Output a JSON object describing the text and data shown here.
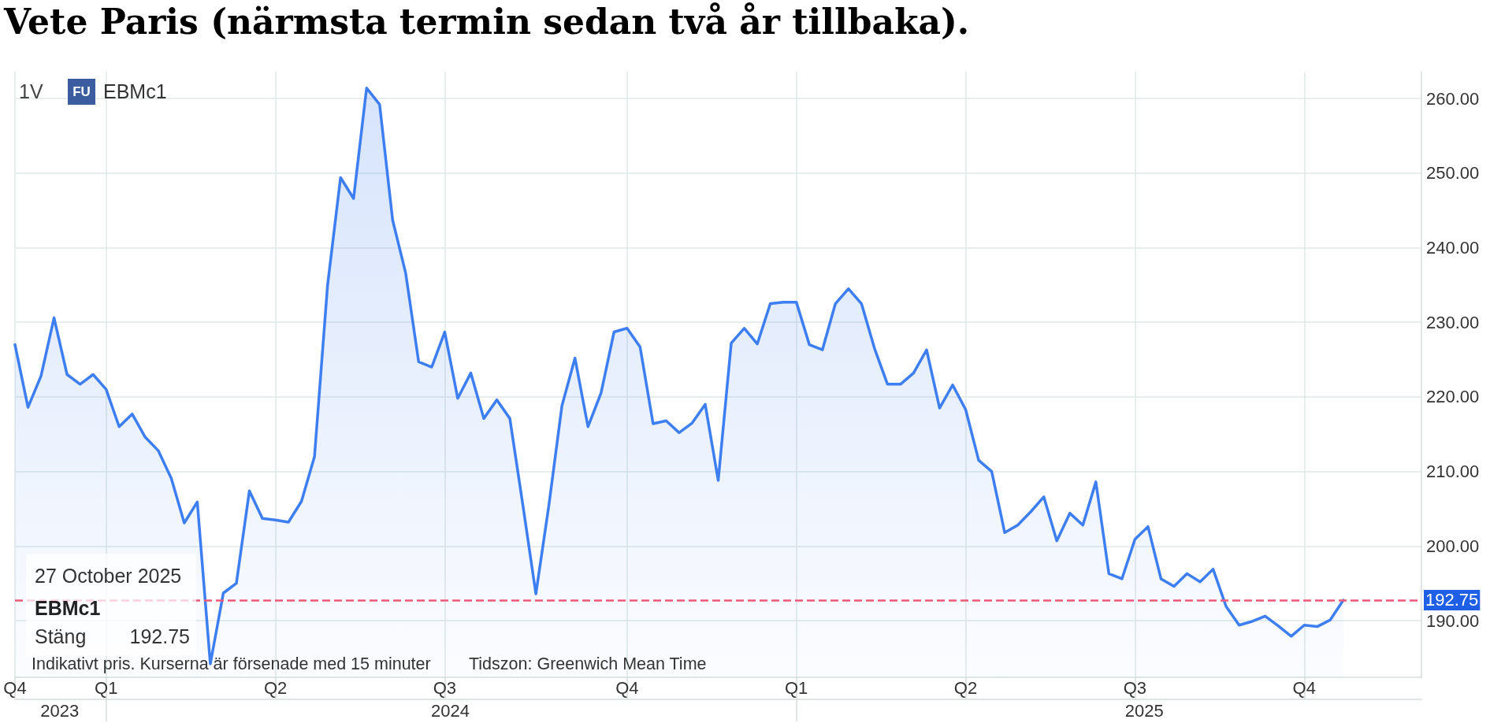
{
  "chart_data": {
    "type": "area",
    "title": "Vete Paris (närmsta termin sedan två år tillbaka).",
    "x": [
      "2023-11-13",
      "2023-11-20",
      "2023-11-27",
      "2023-12-04",
      "2023-12-11",
      "2023-12-18",
      "2023-12-25",
      "2024-01-01",
      "2024-01-08",
      "2024-01-15",
      "2024-01-22",
      "2024-01-29",
      "2024-02-05",
      "2024-02-12",
      "2024-02-19",
      "2024-02-26",
      "2024-03-04",
      "2024-03-11",
      "2024-03-18",
      "2024-03-25",
      "2024-04-01",
      "2024-04-08",
      "2024-04-15",
      "2024-04-22",
      "2024-04-29",
      "2024-05-06",
      "2024-05-13",
      "2024-05-20",
      "2024-05-27",
      "2024-06-03",
      "2024-06-10",
      "2024-06-17",
      "2024-06-24",
      "2024-07-01",
      "2024-07-08",
      "2024-07-15",
      "2024-07-22",
      "2024-07-29",
      "2024-08-05",
      "2024-08-12",
      "2024-08-19",
      "2024-08-26",
      "2024-09-02",
      "2024-09-09",
      "2024-09-16",
      "2024-09-23",
      "2024-09-30",
      "2024-10-07",
      "2024-10-14",
      "2024-10-21",
      "2024-10-28",
      "2024-11-04",
      "2024-11-11",
      "2024-11-18",
      "2024-11-25",
      "2024-12-02",
      "2024-12-09",
      "2024-12-16",
      "2024-12-23",
      "2024-12-30",
      "2025-01-06",
      "2025-01-13",
      "2025-01-20",
      "2025-01-27",
      "2025-02-03",
      "2025-02-10",
      "2025-02-17",
      "2025-02-24",
      "2025-03-03",
      "2025-03-10",
      "2025-03-17",
      "2025-03-24",
      "2025-03-31",
      "2025-04-07",
      "2025-04-14",
      "2025-04-21",
      "2025-04-28",
      "2025-05-05",
      "2025-05-12",
      "2025-05-19",
      "2025-05-26",
      "2025-06-02",
      "2025-06-09",
      "2025-06-16",
      "2025-06-23",
      "2025-06-30",
      "2025-07-07",
      "2025-07-14",
      "2025-07-21",
      "2025-07-28",
      "2025-08-04",
      "2025-08-11",
      "2025-08-18",
      "2025-08-25",
      "2025-09-01",
      "2025-09-08",
      "2025-09-15",
      "2025-09-22",
      "2025-09-29",
      "2025-10-06",
      "2025-10-13",
      "2025-10-20",
      "2025-10-27"
    ],
    "series": [
      {
        "color": "#3d7ef0",
        "values": [
          227.0,
          218.6,
          222.8,
          230.6,
          223.0,
          221.7,
          223.0,
          221.0,
          216.0,
          217.7,
          214.6,
          212.8,
          209.1,
          203.1,
          205.9,
          184.2,
          193.7,
          195.0,
          207.4,
          203.7,
          203.5,
          203.2,
          206.0,
          212.0,
          234.9,
          249.4,
          246.6,
          261.4,
          259.2,
          243.7,
          236.6,
          224.7,
          224.0,
          228.7,
          219.8,
          223.2,
          217.1,
          219.6,
          217.1,
          205.5,
          193.6,
          205.5,
          218.8,
          225.2,
          216.0,
          220.5,
          228.7,
          229.2,
          226.7,
          216.4,
          216.8,
          215.2,
          216.5,
          219.0,
          208.8,
          227.2,
          229.2,
          227.1,
          232.5,
          232.7,
          232.7,
          227.0,
          226.3,
          232.5,
          234.5,
          232.5,
          226.5,
          221.7,
          221.7,
          223.2,
          226.3,
          218.5,
          221.6,
          218.3,
          211.5,
          210.0,
          201.8,
          202.8,
          204.6,
          206.6,
          200.7,
          204.4,
          202.8,
          208.6,
          196.3,
          195.6,
          200.9,
          202.6,
          195.6,
          194.6,
          196.3,
          195.2,
          196.9,
          191.9,
          189.4,
          189.9,
          190.6,
          189.3,
          187.9,
          189.4,
          189.2,
          190.1,
          192.75
        ]
      }
    ],
    "xlim": [
      "2023-11-13",
      "2025-12-08"
    ],
    "xticks": [
      {
        "value": "2023-11-13",
        "label": "Q4"
      },
      {
        "value": "2024-01-01",
        "label": "Q1"
      },
      {
        "value": "2024-04-01",
        "label": "Q2"
      },
      {
        "value": "2024-07-01",
        "label": "Q3"
      },
      {
        "value": "2024-10-07",
        "label": "Q4"
      },
      {
        "value": "2025-01-06",
        "label": "Q1"
      },
      {
        "value": "2025-04-07",
        "label": "Q2"
      },
      {
        "value": "2025-07-07",
        "label": "Q3"
      },
      {
        "value": "2025-10-06",
        "label": "Q4"
      }
    ],
    "x2lim": [
      "2023-11-13",
      "2025-12-08"
    ],
    "x2ticks": [
      {
        "value": "2023-12-07",
        "label": "2023"
      },
      {
        "value": "2024-01-01",
        "label": null
      },
      {
        "value": "2024-07-04",
        "label": "2024"
      },
      {
        "value": "2025-01-06",
        "label": null
      },
      {
        "value": "2025-07-12",
        "label": "2025"
      }
    ],
    "ylim": [
      182.4,
      263.6
    ],
    "yticks": [
      {
        "value": 190,
        "label": "190.00"
      },
      {
        "value": 200,
        "label": "200.00"
      },
      {
        "value": 210,
        "label": "210.00"
      },
      {
        "value": 220,
        "label": "220.00"
      },
      {
        "value": 230,
        "label": "230.00"
      },
      {
        "value": 240,
        "label": "240.00"
      },
      {
        "value": 250,
        "label": "250.00"
      },
      {
        "value": 260,
        "label": "260.00"
      }
    ],
    "ref_lines": [
      {
        "axis": "y",
        "value": 192.75,
        "label": "192.75",
        "color": "#f0587a",
        "line_style": "dashed"
      }
    ],
    "grid": true,
    "annotations": [
      "1V",
      "FU",
      "EBMc1",
      "27 October 2025",
      "EBMc1",
      "Stäng",
      "192.75",
      "Indikativt pris. Kurserna är försenade med 15 minuter",
      "Tidszon: Greenwich Mean Time"
    ]
  }
}
